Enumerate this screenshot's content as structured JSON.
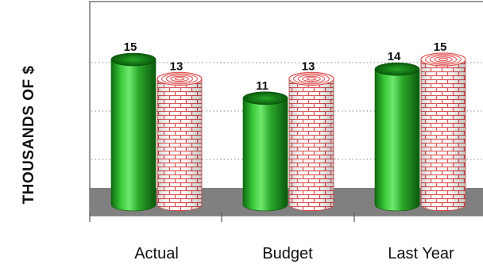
{
  "chart_data": {
    "type": "bar",
    "categories": [
      "Actual",
      "Budget",
      "Last Year"
    ],
    "series": [
      {
        "values": [
          15,
          11,
          14
        ],
        "color": "#22a022",
        "pattern": "solid-cylinder"
      },
      {
        "values": [
          13,
          13,
          15
        ],
        "color": "#e05050",
        "pattern": "brick-cylinder"
      }
    ],
    "ylabel": "THOUSANDS OF $",
    "xlabel": "",
    "title": "",
    "ylim": [
      0,
      15
    ],
    "grid": "dotted horizontal",
    "data_labels": true,
    "floor_color": "#808080",
    "legend": "none"
  }
}
